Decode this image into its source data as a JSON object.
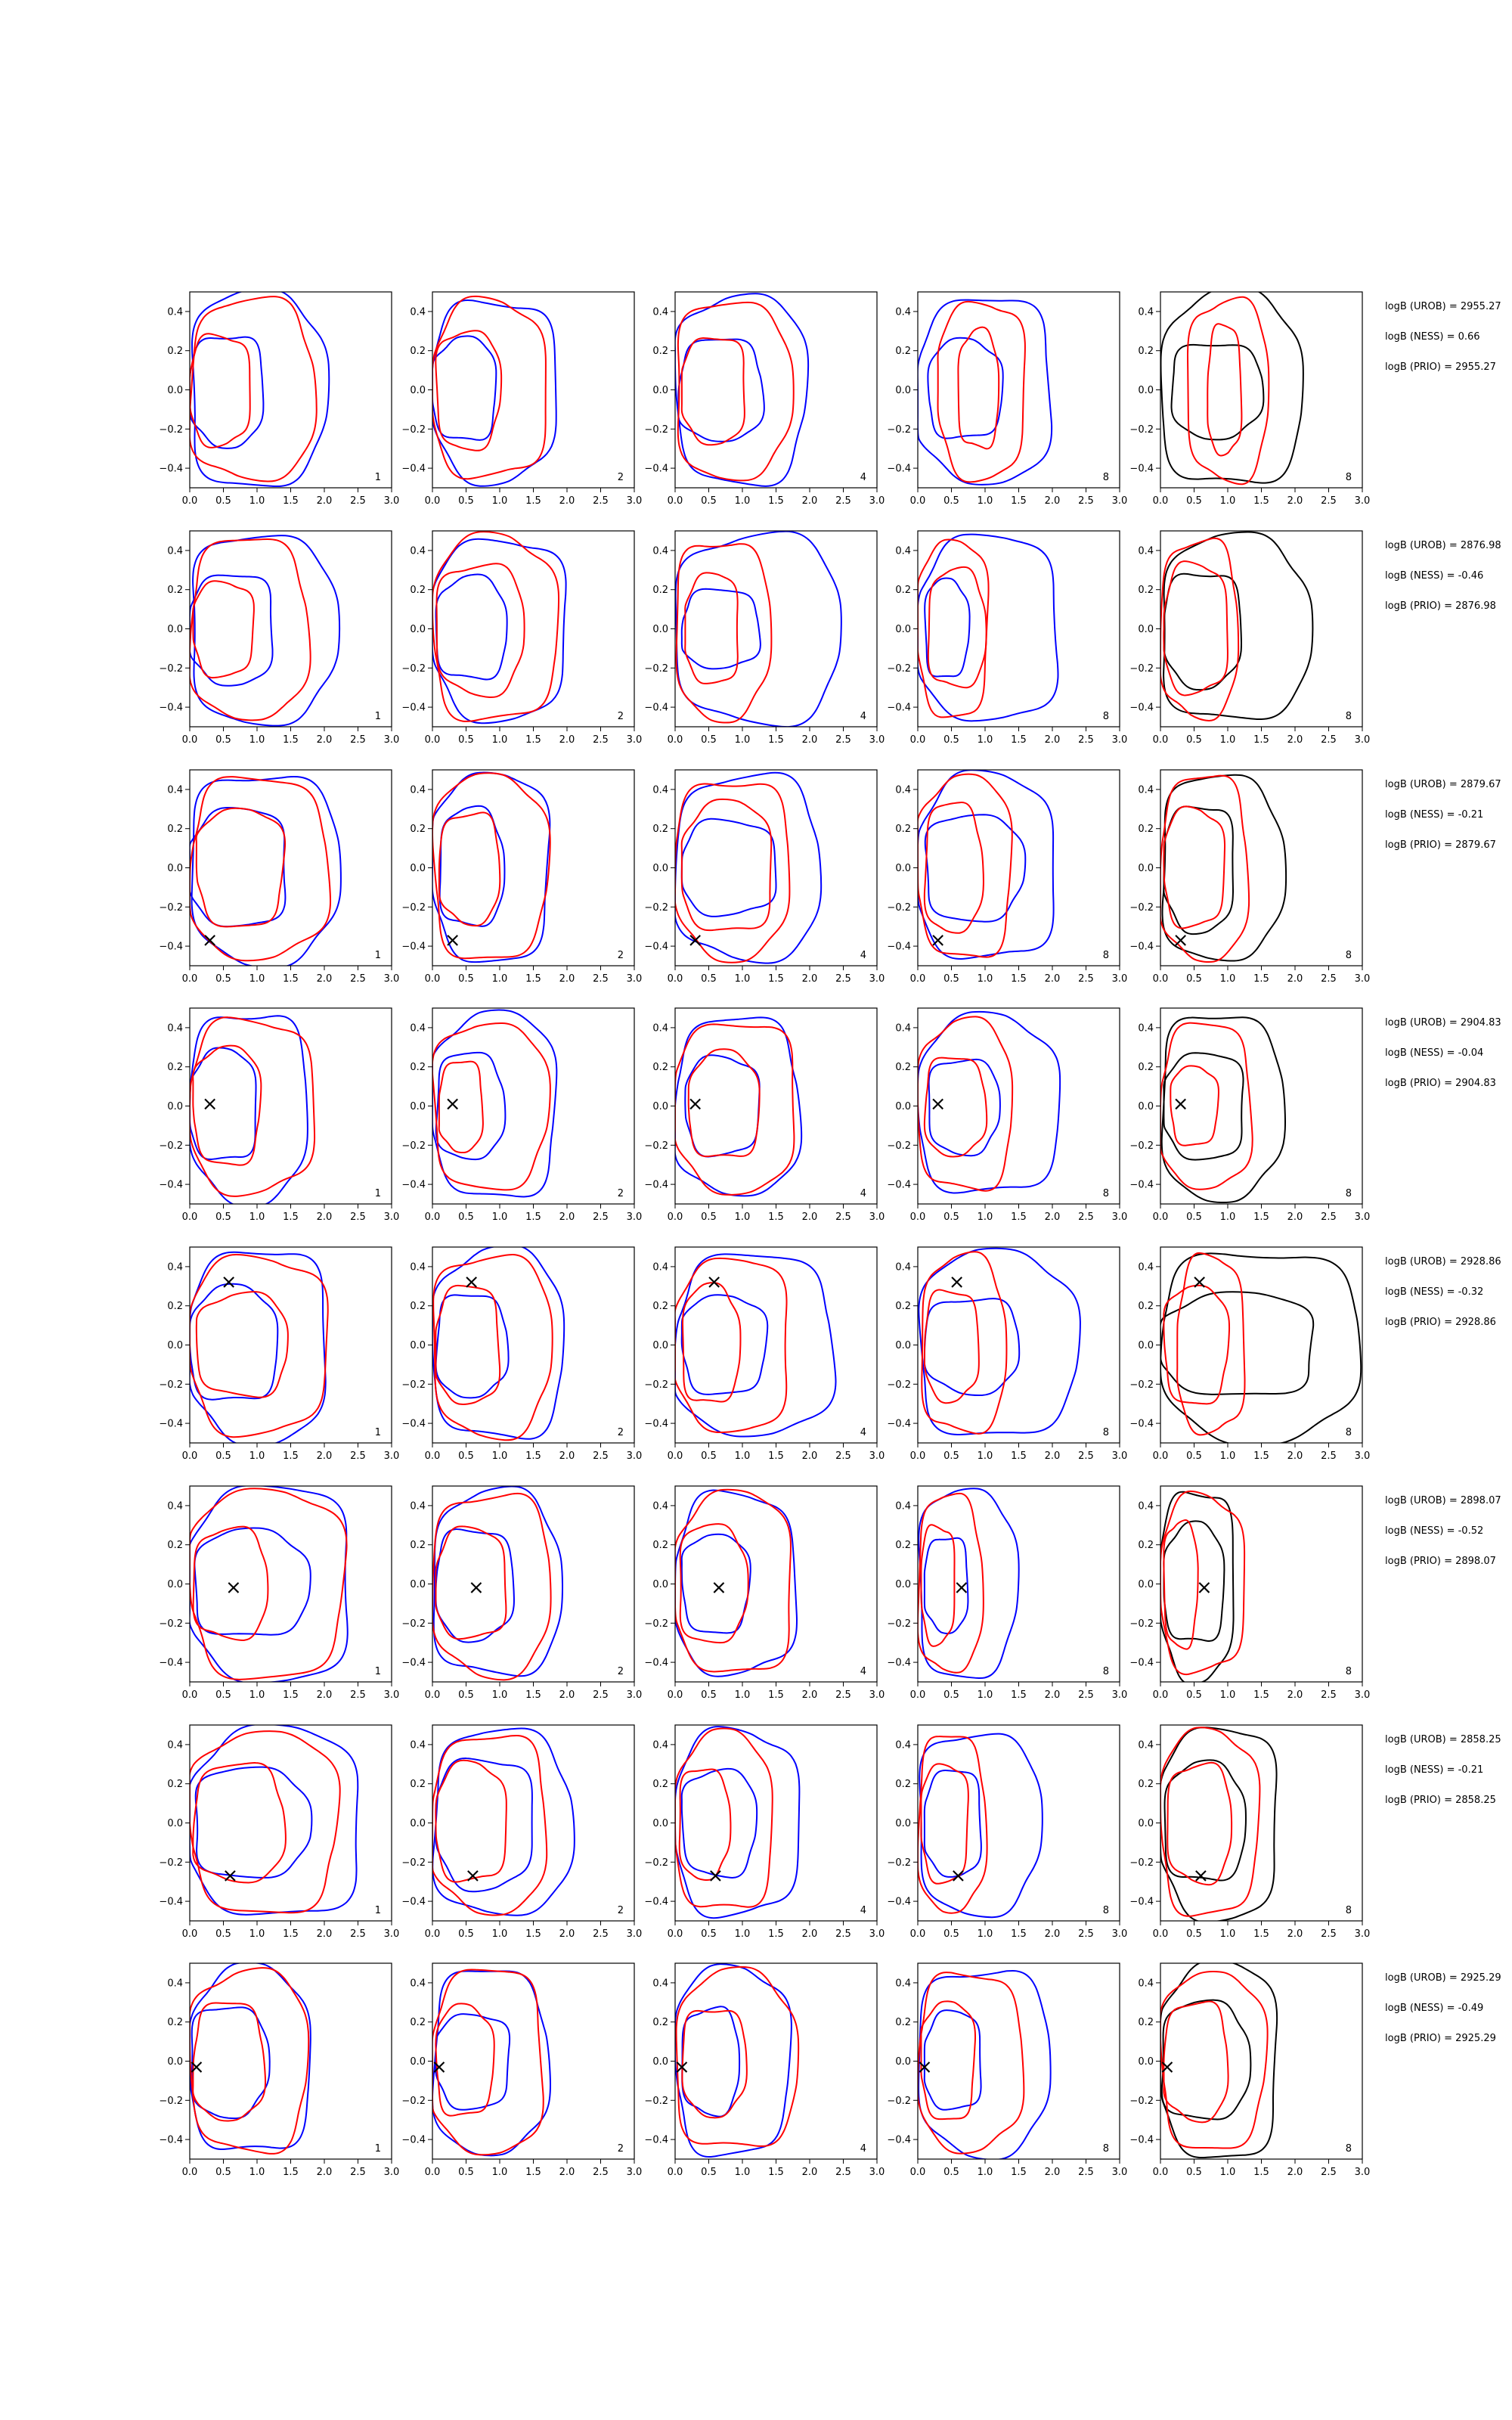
{
  "chart_data": {
    "type": "contour-grid",
    "rows": 8,
    "cols": 5,
    "xlim": [
      0,
      3.0
    ],
    "ylim": [
      -0.5,
      0.5
    ],
    "x_ticks": [
      "0.0",
      "0.5",
      "1.0",
      "1.5",
      "2.0",
      "2.5",
      "3.0"
    ],
    "y_ticks": [
      "−0.4",
      "−0.2",
      "0.0",
      "0.2",
      "0.4"
    ],
    "panel_labels": [
      "1",
      "2",
      "4",
      "8",
      "8"
    ],
    "colors": {
      "blue": "#0000ff",
      "red": "#ff0000",
      "black": "#000000"
    },
    "marker_symbol": "×",
    "markers": [
      null,
      null,
      {
        "x": 0.3,
        "y": -0.37
      },
      {
        "x": 0.3,
        "y": 0.01
      },
      {
        "x": 0.58,
        "y": 0.32
      },
      {
        "x": 0.65,
        "y": -0.02
      },
      {
        "x": 0.6,
        "y": -0.27
      },
      {
        "x": 0.1,
        "y": -0.03
      }
    ],
    "contours": [
      [
        {
          "blue": [
            [
              0.0,
              2.0,
              0.5
            ],
            [
              0.0,
              1.1,
              0.28
            ]
          ],
          "red": [
            [
              0.0,
              1.85,
              0.46
            ],
            [
              0.0,
              0.9,
              0.28
            ]
          ]
        },
        {
          "blue": [
            [
              0.0,
              1.85,
              0.46
            ],
            [
              0.0,
              0.95,
              0.26
            ]
          ],
          "red": [
            [
              0.0,
              1.7,
              0.45
            ],
            [
              0.05,
              1.0,
              0.3
            ]
          ]
        },
        {
          "blue": [
            [
              0.0,
              1.95,
              0.48
            ],
            [
              0.05,
              1.3,
              0.26
            ]
          ],
          "red": [
            [
              0.0,
              1.7,
              0.45
            ],
            [
              0.1,
              1.05,
              0.27
            ]
          ]
        },
        {
          "blue": [
            [
              0.0,
              2.0,
              0.47
            ],
            [
              0.15,
              1.25,
              0.25
            ]
          ],
          "red": [
            [
              0.3,
              1.6,
              0.45
            ],
            [
              0.6,
              1.2,
              0.3
            ]
          ]
        },
        {
          "black": [
            [
              0.0,
              2.1,
              0.49
            ],
            [
              0.15,
              1.5,
              0.24
            ]
          ],
          "red": [
            [
              0.4,
              1.6,
              0.46
            ],
            [
              0.7,
              1.2,
              0.33
            ]
          ]
        }
      ],
      [
        {
          "blue": [
            [
              0.0,
              2.15,
              0.48
            ],
            [
              0.0,
              1.25,
              0.28
            ]
          ],
          "red": [
            [
              0.0,
              1.75,
              0.46
            ],
            [
              0.05,
              0.95,
              0.24
            ]
          ]
        },
        {
          "blue": [
            [
              0.0,
              2.0,
              0.46
            ],
            [
              0.05,
              1.1,
              0.26
            ]
          ],
          "red": [
            [
              0.0,
              1.85,
              0.47
            ],
            [
              0.05,
              1.35,
              0.33
            ]
          ]
        },
        {
          "blue": [
            [
              0.0,
              2.45,
              0.48
            ],
            [
              0.1,
              1.25,
              0.2
            ]
          ],
          "red": [
            [
              0.0,
              1.4,
              0.45
            ],
            [
              0.15,
              0.95,
              0.28
            ]
          ]
        },
        {
          "blue": [
            [
              0.0,
              2.1,
              0.47
            ],
            [
              0.1,
              0.75,
              0.25
            ]
          ],
          "red": [
            [
              0.0,
              1.05,
              0.45
            ],
            [
              0.15,
              1.0,
              0.3
            ]
          ]
        },
        {
          "black": [
            [
              0.0,
              2.2,
              0.47
            ],
            [
              0.05,
              1.2,
              0.29
            ]
          ],
          "red": [
            [
              0.0,
              1.15,
              0.45
            ],
            [
              0.05,
              1.0,
              0.33
            ]
          ]
        }
      ],
      [
        {
          "blue": [
            [
              0.0,
              2.2,
              0.48
            ],
            [
              0.0,
              1.45,
              0.3
            ]
          ],
          "red": [
            [
              0.0,
              2.05,
              0.46
            ],
            [
              0.1,
              1.4,
              0.3
            ]
          ]
        },
        {
          "blue": [
            [
              0.0,
              1.75,
              0.48
            ],
            [
              0.1,
              1.05,
              0.3
            ]
          ],
          "red": [
            [
              0.0,
              1.7,
              0.47
            ],
            [
              0.1,
              1.0,
              0.28
            ]
          ]
        },
        {
          "blue": [
            [
              0.0,
              2.15,
              0.47
            ],
            [
              0.1,
              1.5,
              0.24
            ]
          ],
          "red": [
            [
              0.0,
              1.7,
              0.45
            ],
            [
              0.1,
              1.45,
              0.33
            ]
          ]
        },
        {
          "blue": [
            [
              0.0,
              2.05,
              0.47
            ],
            [
              0.1,
              1.55,
              0.27
            ]
          ],
          "red": [
            [
              0.0,
              1.4,
              0.46
            ],
            [
              0.1,
              0.95,
              0.33
            ]
          ]
        },
        {
          "black": [
            [
              0.0,
              1.8,
              0.47
            ],
            [
              0.05,
              1.1,
              0.32
            ]
          ],
          "red": [
            [
              0.0,
              1.3,
              0.47
            ],
            [
              0.05,
              0.95,
              0.3
            ]
          ]
        }
      ],
      [
        {
          "blue": [
            [
              0.0,
              1.75,
              0.48
            ],
            [
              0.0,
              1.0,
              0.28
            ]
          ],
          "red": [
            [
              0.0,
              1.85,
              0.44
            ],
            [
              0.05,
              1.05,
              0.3
            ]
          ]
        },
        {
          "blue": [
            [
              0.0,
              1.85,
              0.47
            ],
            [
              0.05,
              1.05,
              0.27
            ]
          ],
          "red": [
            [
              0.0,
              1.7,
              0.42
            ],
            [
              0.1,
              0.75,
              0.23
            ]
          ]
        },
        {
          "blue": [
            [
              0.0,
              1.85,
              0.45
            ],
            [
              0.15,
              1.25,
              0.25
            ]
          ],
          "red": [
            [
              0.0,
              1.8,
              0.43
            ],
            [
              0.2,
              1.25,
              0.27
            ]
          ]
        },
        {
          "blue": [
            [
              0.0,
              2.1,
              0.45
            ],
            [
              0.15,
              1.2,
              0.24
            ]
          ],
          "red": [
            [
              0.0,
              1.4,
              0.43
            ],
            [
              0.1,
              1.0,
              0.25
            ]
          ]
        },
        {
          "black": [
            [
              0.0,
              1.8,
              0.47
            ],
            [
              0.05,
              1.25,
              0.27
            ]
          ],
          "red": [
            [
              0.0,
              1.35,
              0.42
            ],
            [
              0.15,
              0.85,
              0.2
            ]
          ]
        }
      ],
      [
        {
          "blue": [
            [
              0.0,
              2.05,
              0.49
            ],
            [
              0.0,
              1.3,
              0.29
            ]
          ],
          "red": [
            [
              0.0,
              2.05,
              0.45
            ],
            [
              0.1,
              1.45,
              0.26
            ]
          ]
        },
        {
          "blue": [
            [
              0.0,
              1.95,
              0.48
            ],
            [
              0.05,
              1.1,
              0.26
            ]
          ],
          "red": [
            [
              0.0,
              1.75,
              0.46
            ],
            [
              0.05,
              1.0,
              0.3
            ]
          ]
        },
        {
          "blue": [
            [
              0.0,
              2.35,
              0.46
            ],
            [
              0.1,
              1.35,
              0.25
            ]
          ],
          "red": [
            [
              0.0,
              1.7,
              0.44
            ],
            [
              0.1,
              0.95,
              0.3
            ]
          ]
        },
        {
          "blue": [
            [
              0.0,
              2.35,
              0.47
            ],
            [
              0.1,
              1.5,
              0.24
            ]
          ],
          "red": [
            [
              0.05,
              1.3,
              0.45
            ],
            [
              0.1,
              0.9,
              0.28
            ]
          ]
        },
        {
          "black": [
            [
              0.0,
              2.95,
              0.48
            ],
            [
              0.0,
              2.3,
              0.26
            ]
          ],
          "red": [
            [
              0.25,
              1.25,
              0.45
            ],
            [
              0.05,
              1.0,
              0.3
            ]
          ]
        }
      ],
      [
        {
          "blue": [
            [
              0.0,
              2.4,
              0.5
            ],
            [
              0.05,
              1.75,
              0.27
            ]
          ],
          "red": [
            [
              0.0,
              2.3,
              0.48
            ],
            [
              0.05,
              1.15,
              0.28
            ]
          ]
        },
        {
          "blue": [
            [
              0.0,
              1.9,
              0.47
            ],
            [
              0.05,
              1.2,
              0.28
            ]
          ],
          "red": [
            [
              0.0,
              1.75,
              0.46
            ],
            [
              0.05,
              1.1,
              0.28
            ]
          ]
        },
        {
          "blue": [
            [
              0.0,
              1.8,
              0.46
            ],
            [
              0.1,
              1.1,
              0.25
            ]
          ],
          "red": [
            [
              0.0,
              1.75,
              0.46
            ],
            [
              0.05,
              1.05,
              0.3
            ]
          ]
        },
        {
          "blue": [
            [
              0.0,
              1.45,
              0.48
            ],
            [
              0.1,
              0.75,
              0.24
            ]
          ],
          "red": [
            [
              0.0,
              0.95,
              0.45
            ],
            [
              0.05,
              0.55,
              0.3
            ]
          ]
        },
        {
          "black": [
            [
              0.0,
              1.1,
              0.48
            ],
            [
              0.05,
              0.95,
              0.3
            ]
          ],
          "red": [
            [
              0.0,
              1.25,
              0.45
            ],
            [
              0.05,
              0.55,
              0.32
            ]
          ]
        }
      ],
      [
        {
          "blue": [
            [
              0.0,
              2.55,
              0.48
            ],
            [
              0.05,
              1.75,
              0.28
            ]
          ],
          "red": [
            [
              0.0,
              2.2,
              0.46
            ],
            [
              0.05,
              1.4,
              0.3
            ]
          ]
        },
        {
          "blue": [
            [
              0.0,
              2.05,
              0.47
            ],
            [
              0.05,
              1.5,
              0.33
            ]
          ],
          "red": [
            [
              0.0,
              1.7,
              0.45
            ],
            [
              0.05,
              1.1,
              0.3
            ]
          ]
        },
        {
          "blue": [
            [
              0.0,
              1.85,
              0.47
            ],
            [
              0.1,
              1.2,
              0.27
            ]
          ],
          "red": [
            [
              0.0,
              1.45,
              0.45
            ],
            [
              0.05,
              0.8,
              0.28
            ]
          ]
        },
        {
          "blue": [
            [
              0.0,
              1.8,
              0.46
            ],
            [
              0.1,
              0.95,
              0.27
            ]
          ],
          "red": [
            [
              0.0,
              1.0,
              0.45
            ],
            [
              0.05,
              0.75,
              0.3
            ]
          ]
        },
        {
          "black": [
            [
              0.0,
              1.75,
              0.49
            ],
            [
              0.05,
              1.25,
              0.3
            ]
          ],
          "red": [
            [
              0.0,
              1.45,
              0.47
            ],
            [
              0.1,
              1.05,
              0.3
            ]
          ]
        }
      ],
      [
        {
          "blue": [
            [
              0.0,
              1.8,
              0.47
            ],
            [
              0.0,
              1.15,
              0.28
            ]
          ],
          "red": [
            [
              0.0,
              1.75,
              0.46
            ],
            [
              0.05,
              1.1,
              0.3
            ]
          ]
        },
        {
          "blue": [
            [
              0.0,
              1.7,
              0.47
            ],
            [
              0.05,
              1.15,
              0.24
            ]
          ],
          "red": [
            [
              0.0,
              1.65,
              0.47
            ],
            [
              0.05,
              0.9,
              0.28
            ]
          ]
        },
        {
          "blue": [
            [
              0.0,
              1.7,
              0.48
            ],
            [
              0.1,
              0.95,
              0.27
            ]
          ],
          "red": [
            [
              0.0,
              1.8,
              0.45
            ],
            [
              0.1,
              1.05,
              0.27
            ]
          ]
        },
        {
          "blue": [
            [
              0.0,
              1.95,
              0.47
            ],
            [
              0.1,
              0.95,
              0.25
            ]
          ],
          "red": [
            [
              0.0,
              1.55,
              0.45
            ],
            [
              0.05,
              0.85,
              0.3
            ]
          ]
        },
        {
          "black": [
            [
              0.0,
              1.75,
              0.5
            ],
            [
              0.0,
              1.3,
              0.3
            ]
          ],
          "red": [
            [
              0.0,
              1.55,
              0.45
            ],
            [
              0.05,
              1.0,
              0.3
            ]
          ]
        }
      ]
    ]
  },
  "logb_rows": [
    {
      "urob": "logB (UROB) = 2955.27",
      "ness": "logB (NESS) = 0.66",
      "prio": "logB (PRIO) = 2955.27"
    },
    {
      "urob": "logB (UROB) = 2876.98",
      "ness": "logB (NESS) = -0.46",
      "prio": "logB (PRIO) = 2876.98"
    },
    {
      "urob": "logB (UROB) = 2879.67",
      "ness": "logB (NESS) = -0.21",
      "prio": "logB (PRIO) = 2879.67"
    },
    {
      "urob": "logB (UROB) = 2904.83",
      "ness": "logB (NESS) = -0.04",
      "prio": "logB (PRIO) = 2904.83"
    },
    {
      "urob": "logB (UROB) = 2928.86",
      "ness": "logB (NESS) = -0.32",
      "prio": "logB (PRIO) = 2928.86"
    },
    {
      "urob": "logB (UROB) = 2898.07",
      "ness": "logB (NESS) = -0.52",
      "prio": "logB (PRIO) = 2898.07"
    },
    {
      "urob": "logB (UROB) = 2858.25",
      "ness": "logB (NESS) = -0.21",
      "prio": "logB (PRIO) = 2858.25"
    },
    {
      "urob": "logB (UROB) = 2925.29",
      "ness": "logB (NESS) = -0.49",
      "prio": "logB (PRIO) = 2925.29"
    }
  ]
}
